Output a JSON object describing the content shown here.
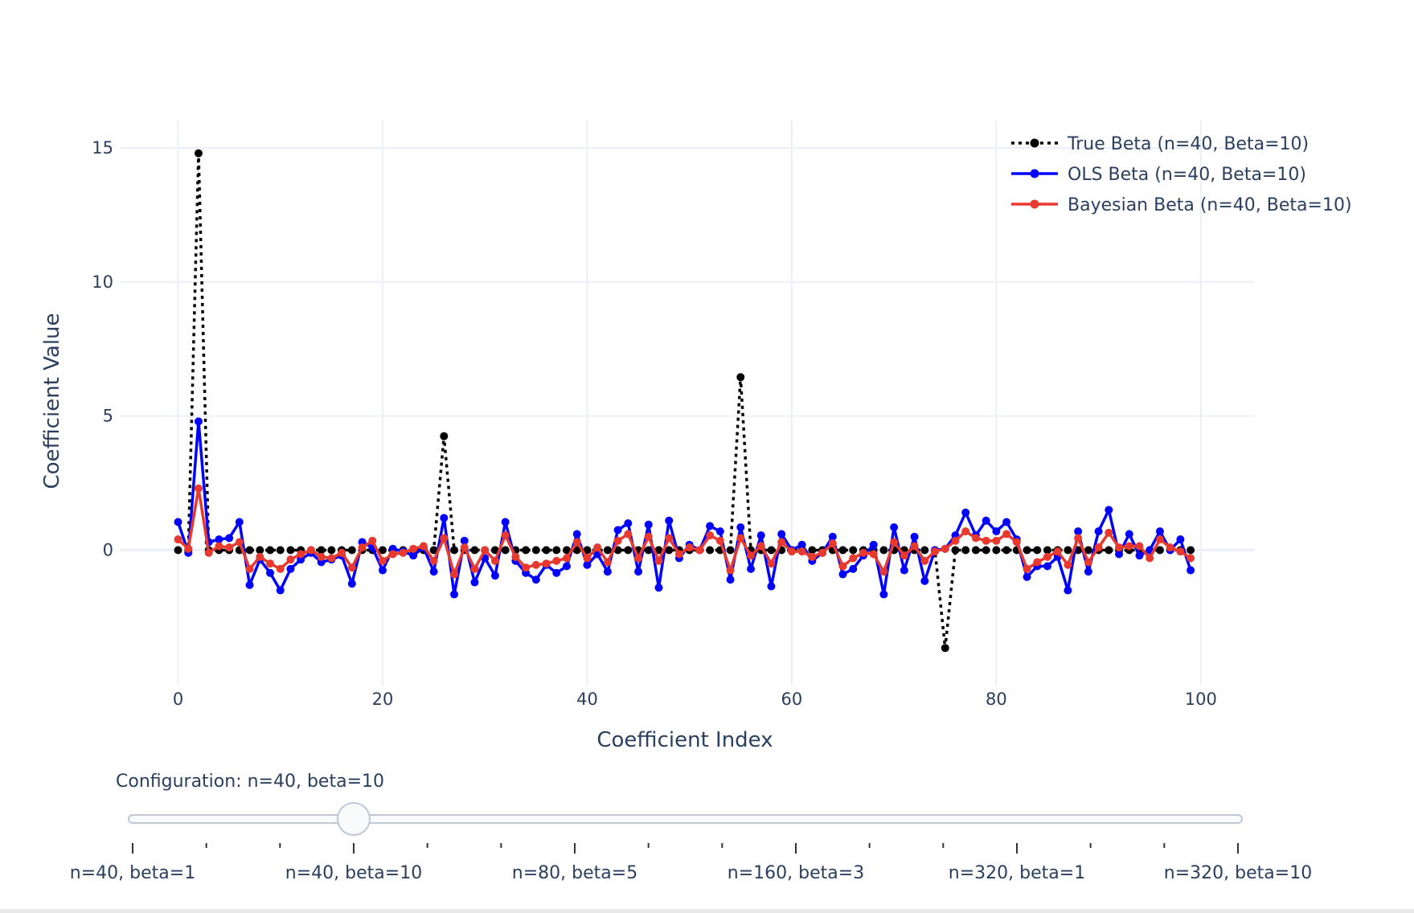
{
  "chart_data": {
    "type": "line",
    "xlabel": "Coefficient Index",
    "ylabel": "Coefficient Value",
    "xlim": [
      -5.7,
      105.2
    ],
    "ylim": [
      -5.05,
      16.05
    ],
    "xticks": [
      0,
      20,
      40,
      60,
      80,
      100
    ],
    "yticks": [
      0,
      5,
      10,
      15
    ],
    "grid": true,
    "legend_position": "top-right",
    "series": [
      {
        "name": "True Beta (n=40, Beta=10)",
        "color": "#000000",
        "dash": "dot",
        "values": [
          0,
          0,
          14.8,
          0,
          0,
          0,
          0,
          0,
          0,
          0,
          0,
          0,
          0,
          0,
          0,
          0,
          0,
          0,
          0,
          0,
          0,
          0,
          0,
          0,
          0,
          0,
          4.25,
          0,
          0,
          0,
          0,
          0,
          0,
          0,
          0,
          0,
          0,
          0,
          0,
          0,
          0,
          0,
          0,
          0,
          0,
          0,
          0,
          0,
          0,
          0,
          0,
          0,
          0,
          0,
          0,
          6.45,
          0,
          0,
          0,
          0,
          0,
          0,
          0,
          0,
          0,
          0,
          0,
          0,
          0,
          0,
          0,
          0,
          0,
          0,
          0,
          -3.65,
          0,
          0,
          0,
          0,
          0,
          0,
          0,
          0,
          0,
          0,
          0,
          0,
          0,
          0,
          0,
          0,
          0,
          0,
          0,
          0,
          0,
          0,
          0,
          0
        ]
      },
      {
        "name": "OLS Beta (n=40, Beta=10)",
        "color": "#0000ff",
        "dash": "solid",
        "values": [
          1.05,
          -0.1,
          4.8,
          0.3,
          0.4,
          0.45,
          1.05,
          -1.3,
          -0.35,
          -0.85,
          -1.5,
          -0.7,
          -0.35,
          -0.1,
          -0.45,
          -0.35,
          -0.2,
          -1.25,
          0.3,
          0.1,
          -0.75,
          0.05,
          -0.05,
          -0.2,
          0.1,
          -0.8,
          1.2,
          -1.65,
          0.35,
          -1.2,
          -0.3,
          -0.95,
          1.05,
          -0.4,
          -0.85,
          -1.1,
          -0.55,
          -0.85,
          -0.6,
          0.6,
          -0.55,
          -0.15,
          -0.8,
          0.75,
          1.0,
          -0.8,
          0.95,
          -1.4,
          1.1,
          -0.3,
          0.2,
          0.0,
          0.9,
          0.7,
          -1.1,
          0.85,
          -0.7,
          0.55,
          -1.35,
          0.6,
          0.0,
          0.2,
          -0.4,
          -0.1,
          0.5,
          -0.9,
          -0.7,
          -0.2,
          0.2,
          -1.65,
          0.85,
          -0.75,
          0.5,
          -1.15,
          0.0,
          0.05,
          0.55,
          1.4,
          0.55,
          1.1,
          0.7,
          1.05,
          0.4,
          -1.0,
          -0.6,
          -0.6,
          -0.25,
          -1.5,
          0.7,
          -0.8,
          0.7,
          1.5,
          -0.15,
          0.6,
          -0.2,
          0.0,
          0.7,
          0.0,
          0.4,
          -0.75
        ]
      },
      {
        "name": "Bayesian Beta (n=40, Beta=10)",
        "color": "#e8392f",
        "dash": "solid",
        "values": [
          0.4,
          0.05,
          2.3,
          -0.1,
          0.15,
          0.1,
          0.3,
          -0.7,
          -0.25,
          -0.5,
          -0.7,
          -0.35,
          -0.15,
          0.0,
          -0.25,
          -0.3,
          -0.1,
          -0.65,
          0.1,
          0.35,
          -0.4,
          -0.15,
          -0.1,
          0.05,
          0.15,
          -0.4,
          0.45,
          -0.9,
          0.1,
          -0.7,
          0.0,
          -0.4,
          0.55,
          -0.25,
          -0.65,
          -0.55,
          -0.5,
          -0.4,
          -0.3,
          0.3,
          -0.3,
          0.1,
          -0.45,
          0.35,
          0.6,
          -0.3,
          0.5,
          -0.4,
          0.45,
          -0.15,
          0.1,
          0.0,
          0.55,
          0.35,
          -0.75,
          0.45,
          -0.2,
          0.15,
          -0.5,
          0.3,
          -0.05,
          -0.05,
          -0.25,
          -0.1,
          0.25,
          -0.6,
          -0.3,
          -0.1,
          -0.15,
          -0.8,
          0.3,
          -0.2,
          0.15,
          -0.4,
          -0.05,
          0.05,
          0.35,
          0.7,
          0.45,
          0.35,
          0.35,
          0.6,
          0.3,
          -0.7,
          -0.45,
          -0.25,
          -0.05,
          -0.55,
          0.45,
          -0.45,
          0.1,
          0.65,
          0.1,
          0.15,
          0.15,
          -0.3,
          0.4,
          0.1,
          -0.05,
          -0.3
        ]
      }
    ]
  },
  "slider": {
    "current_label": "Configuration: n=40, beta=10",
    "total_steps": 16,
    "active_step": 3,
    "labeled_steps": [
      {
        "step": 0,
        "label": "n=40, beta=1"
      },
      {
        "step": 3,
        "label": "n=40, beta=10"
      },
      {
        "step": 6,
        "label": "n=80, beta=5"
      },
      {
        "step": 9,
        "label": "n=160, beta=3"
      },
      {
        "step": 12,
        "label": "n=320, beta=1"
      },
      {
        "step": 15,
        "label": "n=320, beta=10"
      }
    ]
  }
}
